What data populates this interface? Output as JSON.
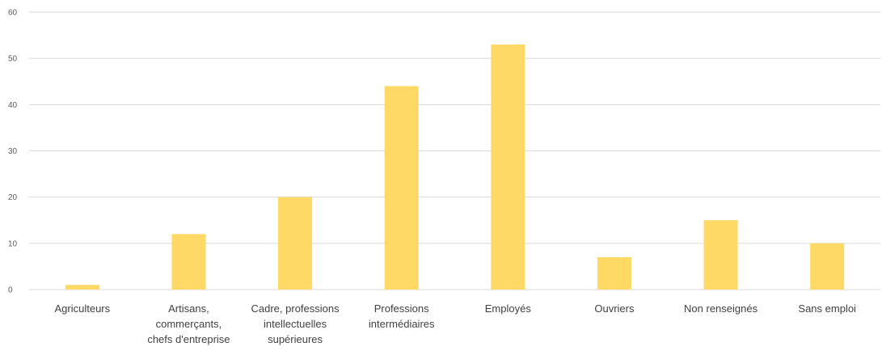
{
  "chart_data": {
    "type": "bar",
    "categories": [
      "Agriculteurs",
      "Artisans, commerçants, chefs d'entreprise",
      "Cadre, professions intellectuelles supérieures",
      "Professions intermédiaires",
      "Employés",
      "Ouvriers",
      "Non renseignés",
      "Sans emploi"
    ],
    "category_lines": [
      [
        "Agriculteurs"
      ],
      [
        "Artisans,",
        "commerçants,",
        "chefs d'entreprise"
      ],
      [
        "Cadre, professions",
        "intellectuelles",
        "supérieures"
      ],
      [
        "Professions",
        "intermédiaires"
      ],
      [
        "Employés"
      ],
      [
        "Ouvriers"
      ],
      [
        "Non renseignés"
      ],
      [
        "Sans emploi"
      ]
    ],
    "values": [
      1,
      12,
      20,
      44,
      53,
      7,
      15,
      10
    ],
    "ylim": [
      0,
      60
    ],
    "yticks": [
      0,
      10,
      20,
      30,
      40,
      50,
      60
    ],
    "title": "",
    "xlabel": "",
    "ylabel": "",
    "grid": true,
    "legend": "none",
    "bar_color": "#FFD966",
    "grid_color": "#D9D9D9"
  }
}
